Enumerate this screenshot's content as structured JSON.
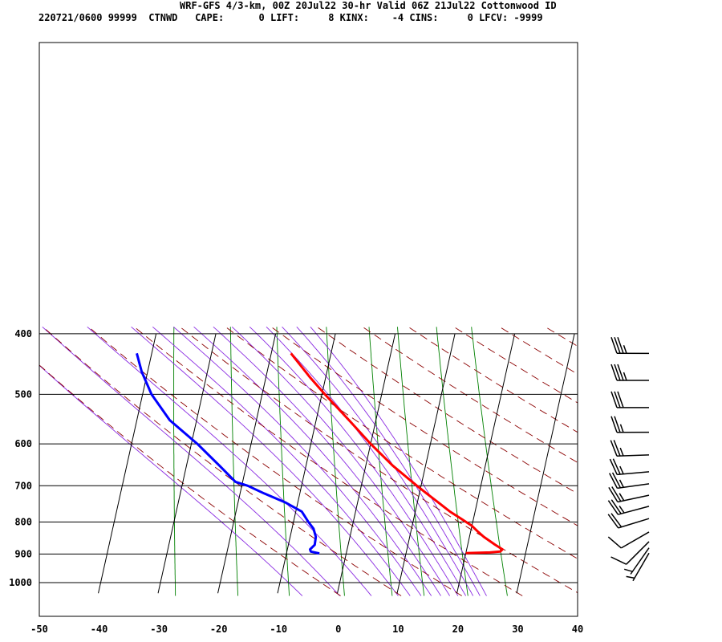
{
  "header": {
    "line1": "WRF-GFS 4/3-km, 00Z 20Jul22 30-hr Valid 06Z 21Jul22 Cottonwood ID",
    "line2": "220721/0600 99999  CTNWD   CAPE:      0 LIFT:     8 KINX:    -4 CINS:     0 LFCV: -9999"
  },
  "colors": {
    "temperature": "#ff0000",
    "dewpoint": "#0000ff",
    "isotherm_grid": "#000000",
    "dry_adiabat": "#8b0000",
    "moist_adiabat": "#8a2be2",
    "mixing_ratio": "#008000",
    "wind_barb": "#000000"
  },
  "chart_data": {
    "type": "skew-t",
    "x_ticks": [
      -50,
      -40,
      -30,
      -20,
      -10,
      0,
      10,
      20,
      30,
      40
    ],
    "y_ticks": [
      400,
      500,
      600,
      700,
      800,
      900,
      1000
    ],
    "xlim": [
      -50,
      40
    ],
    "ylim": [
      1040,
      400
    ],
    "temperature": [
      {
        "p": 897,
        "t": 20.0
      },
      {
        "p": 895,
        "t": 24.0
      },
      {
        "p": 892,
        "t": 25.7
      },
      {
        "p": 885,
        "t": 26.0
      },
      {
        "p": 870,
        "t": 24.6
      },
      {
        "p": 845,
        "t": 22.4
      },
      {
        "p": 830,
        "t": 21.3
      },
      {
        "p": 810,
        "t": 19.9
      },
      {
        "p": 790,
        "t": 17.9
      },
      {
        "p": 770,
        "t": 15.8
      },
      {
        "p": 750,
        "t": 14.0
      },
      {
        "p": 720,
        "t": 11.2
      },
      {
        "p": 700,
        "t": 9.3
      },
      {
        "p": 650,
        "t": 4.5
      },
      {
        "p": 600,
        "t": 0.0
      },
      {
        "p": 550,
        "t": -4.5
      },
      {
        "p": 500,
        "t": -9.5
      },
      {
        "p": 470,
        "t": -12.6
      },
      {
        "p": 430,
        "t": -16.7
      }
    ],
    "dewpoint": [
      {
        "p": 898,
        "t": -4.5
      },
      {
        "p": 892,
        "t": -6.0
      },
      {
        "p": 885,
        "t": -6.2
      },
      {
        "p": 870,
        "t": -5.6
      },
      {
        "p": 845,
        "t": -5.7
      },
      {
        "p": 820,
        "t": -6.4
      },
      {
        "p": 800,
        "t": -7.5
      },
      {
        "p": 770,
        "t": -9.0
      },
      {
        "p": 745,
        "t": -12.0
      },
      {
        "p": 720,
        "t": -16.0
      },
      {
        "p": 700,
        "t": -19.0
      },
      {
        "p": 690,
        "t": -21.2
      },
      {
        "p": 650,
        "t": -24.5
      },
      {
        "p": 600,
        "t": -29.0
      },
      {
        "p": 550,
        "t": -34.5
      },
      {
        "p": 500,
        "t": -38.5
      },
      {
        "p": 460,
        "t": -41.0
      },
      {
        "p": 430,
        "t": -42.5
      }
    ],
    "isobars": [
      400,
      500,
      600,
      700,
      800,
      900,
      1000
    ],
    "isotherms": [
      -40,
      -30,
      -20,
      -10,
      0,
      10,
      20,
      30
    ],
    "dry_adiabats_theta_K": [
      270,
      280,
      290,
      300,
      310,
      320,
      330,
      340,
      350,
      360,
      370,
      380,
      390,
      400
    ],
    "moist_adiabats_thetae_K": [
      270,
      280,
      290,
      300,
      305,
      310,
      315,
      320,
      325,
      330,
      335,
      340,
      345,
      350
    ],
    "mixing_ratio_lines_gkg": [
      0.4,
      1,
      2,
      4,
      7,
      10,
      16,
      24
    ],
    "wind_barbs": [
      {
        "p": 430,
        "dir_deg": 270,
        "speed_kt": 35
      },
      {
        "p": 475,
        "dir_deg": 270,
        "speed_kt": 35
      },
      {
        "p": 525,
        "dir_deg": 270,
        "speed_kt": 30
      },
      {
        "p": 575,
        "dir_deg": 270,
        "speed_kt": 25
      },
      {
        "p": 625,
        "dir_deg": 268,
        "speed_kt": 25
      },
      {
        "p": 665,
        "dir_deg": 265,
        "speed_kt": 25
      },
      {
        "p": 695,
        "dir_deg": 262,
        "speed_kt": 25
      },
      {
        "p": 725,
        "dir_deg": 258,
        "speed_kt": 25
      },
      {
        "p": 755,
        "dir_deg": 255,
        "speed_kt": 25
      },
      {
        "p": 790,
        "dir_deg": 253,
        "speed_kt": 20
      },
      {
        "p": 830,
        "dir_deg": 240,
        "speed_kt": 10
      },
      {
        "p": 860,
        "dir_deg": 225,
        "speed_kt": 10
      },
      {
        "p": 880,
        "dir_deg": 215,
        "speed_kt": 5
      },
      {
        "p": 897,
        "dir_deg": 210,
        "speed_kt": 5
      }
    ]
  }
}
